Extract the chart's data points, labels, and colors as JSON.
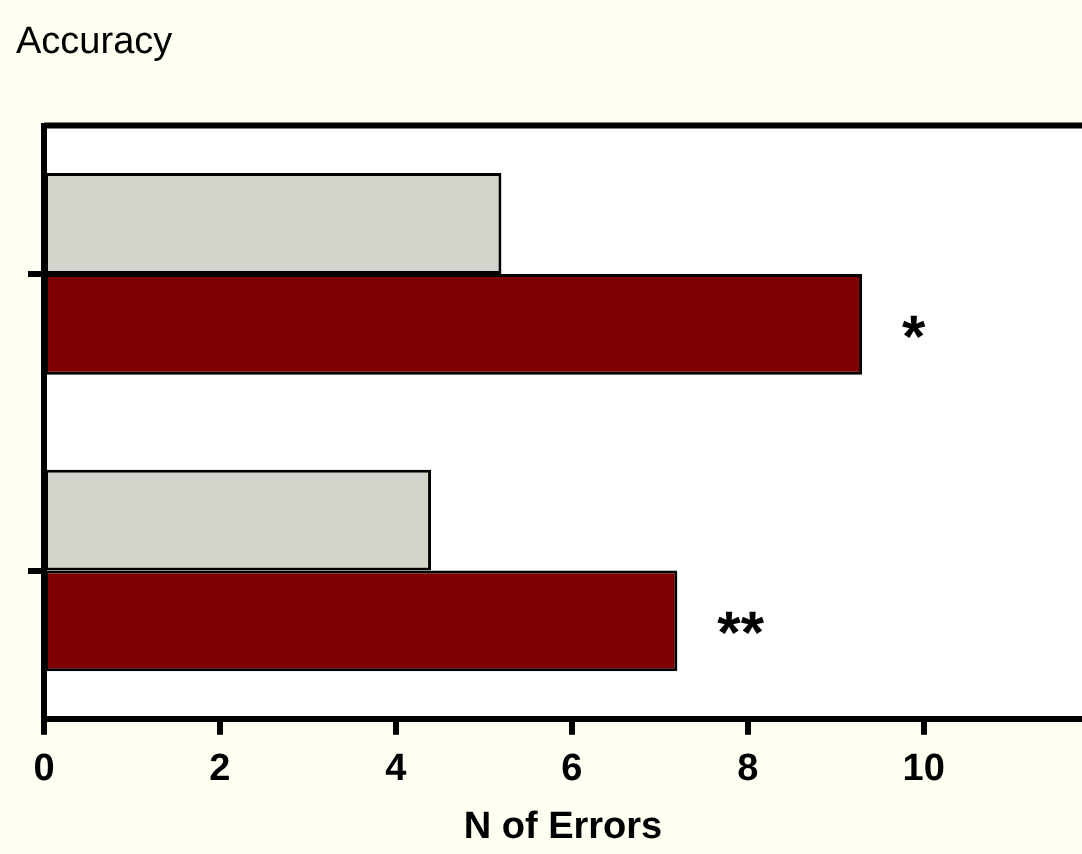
{
  "chart_data": {
    "type": "bar",
    "orientation": "horizontal",
    "title": "Accuracy",
    "xlabel": "N of Errors",
    "categories": [
      null,
      null
    ],
    "series": [
      {
        "color": "#d4d4cc",
        "values": [
          5.2,
          4.4
        ]
      },
      {
        "color": "#7f0000",
        "values": [
          9.3,
          7.2
        ]
      }
    ],
    "xlim": [
      0,
      11.8
    ],
    "xticks": [
      0,
      2,
      4,
      6,
      8,
      10
    ],
    "grid": false,
    "legend": false,
    "annotations": [
      {
        "text": "*",
        "x": 9.3
      },
      {
        "text": "**",
        "x": 7.2
      }
    ]
  }
}
